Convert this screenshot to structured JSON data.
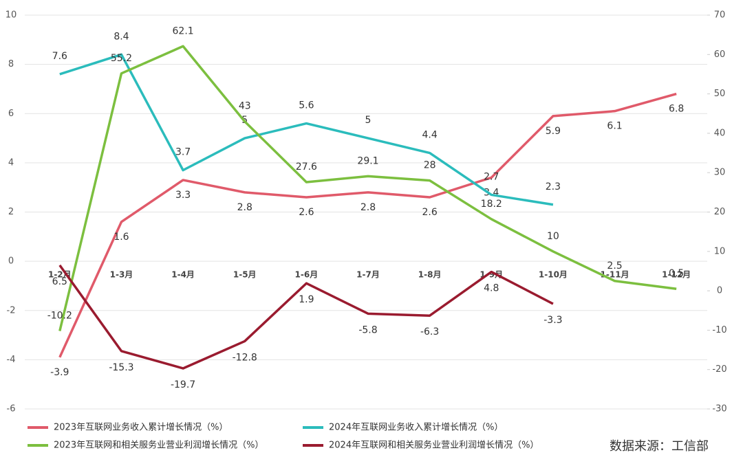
{
  "chart_data": {
    "type": "line",
    "categories": [
      "1-2月",
      "1-3月",
      "1-4月",
      "1-5月",
      "1-6月",
      "1-7月",
      "1-8月",
      "1-9月",
      "1-10月",
      "1-11月",
      "1-12月"
    ],
    "series": [
      {
        "name": "2023年互联网业务收入累计增长情况（%）",
        "color": "#e05a6a",
        "axis": "y",
        "values": [
          -3.9,
          1.6,
          3.3,
          2.8,
          2.6,
          2.8,
          2.6,
          3.4,
          5.9,
          6.1,
          6.8
        ]
      },
      {
        "name": "2024年互联网业务收入累计增长情况（%）",
        "color": "#2bbcbc",
        "axis": "y",
        "values": [
          7.6,
          8.4,
          3.7,
          5,
          5.6,
          5,
          4.4,
          2.7,
          2.3,
          null,
          null
        ]
      },
      {
        "name": "2023年互联网和相关服务业营业利润增长情况（%）",
        "color": "#7cbf3f",
        "axis": "y2",
        "values": [
          -10.2,
          55.2,
          62.1,
          43,
          27.6,
          29.1,
          28,
          18.2,
          10,
          2.5,
          0.5
        ]
      },
      {
        "name": "2024年互联网和相关服务业营业利润增长情况（%）",
        "color": "#9a1b2f",
        "axis": "y2",
        "values": [
          6.5,
          -15.3,
          -19.7,
          -12.8,
          1.9,
          -5.8,
          -6.3,
          4.8,
          -3.3,
          null,
          null
        ]
      }
    ],
    "ylim": [
      -6,
      10
    ],
    "yticks": [
      -6,
      -4,
      -2,
      0,
      2,
      4,
      6,
      8,
      10
    ],
    "y2lim": [
      -30,
      70
    ],
    "y2ticks": [
      -30,
      -20,
      -10,
      0,
      10,
      20,
      30,
      40,
      50,
      60,
      70
    ],
    "grid": true,
    "source": "数据来源：工信部"
  }
}
